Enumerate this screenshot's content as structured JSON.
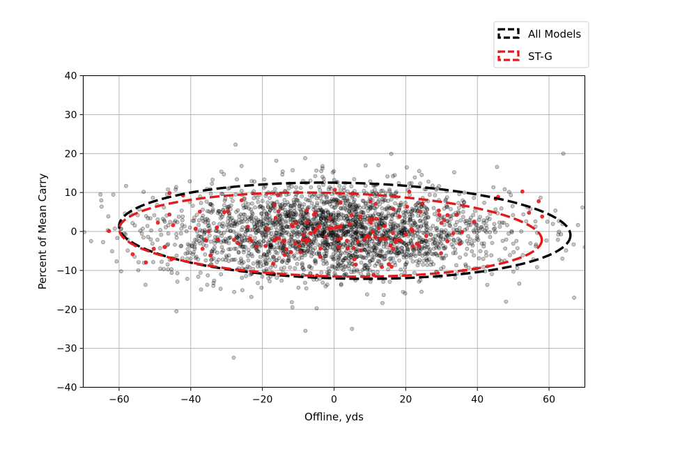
{
  "chart_data": {
    "type": "scatter",
    "xlabel": "Offline, yds",
    "ylabel": "Percent of Mean Carry",
    "xlim": [
      -70,
      70
    ],
    "ylim": [
      -40,
      40
    ],
    "xticks": [
      -60,
      -40,
      -20,
      0,
      20,
      40,
      60
    ],
    "yticks": [
      -40,
      -30,
      -20,
      -10,
      0,
      10,
      20,
      30,
      40
    ],
    "grid": true,
    "legend_position": "top-right",
    "series": [
      {
        "name": "All Models",
        "kind": "points",
        "color": "#000000",
        "point_count_estimate": 2500,
        "distribution": {
          "x_mean": 0,
          "x_sd": 24,
          "y_mean": 0,
          "y_sd": 6
        },
        "notable_points": [
          {
            "x": -27.5,
            "y": 22.3
          },
          {
            "x": -28,
            "y": -32.4
          },
          {
            "x": -8,
            "y": -25.5
          },
          {
            "x": 5,
            "y": -25
          },
          {
            "x": -44,
            "y": -20.5
          },
          {
            "x": 48,
            "y": -18
          },
          {
            "x": 67,
            "y": -17
          },
          {
            "x": 64,
            "y": 20
          }
        ]
      },
      {
        "name": "ST-G",
        "kind": "points",
        "color": "#e31a1c",
        "point_count_estimate": 150,
        "distribution": {
          "x_mean": 0,
          "x_sd": 24,
          "y_mean": 0,
          "y_sd": 5
        }
      },
      {
        "name": "All Models",
        "kind": "ellipse",
        "color": "#000000",
        "center": [
          3,
          0.2
        ],
        "semi_axis_x": 63,
        "semi_axis_y": 12.3,
        "rotation_deg": -1.2
      },
      {
        "name": "ST-G",
        "kind": "ellipse",
        "color": "#e31a1c",
        "center": [
          -1,
          -0.8
        ],
        "semi_axis_x": 59,
        "semi_axis_y": 10.7,
        "rotation_deg": -1.5
      }
    ]
  },
  "legend": {
    "items": [
      {
        "label": "All Models",
        "color": "#000000"
      },
      {
        "label": "ST-G",
        "color": "#e31a1c"
      }
    ]
  }
}
